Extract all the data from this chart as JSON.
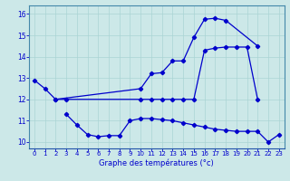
{
  "title": "Graphe des températures (°c)",
  "bg_color": "#cce8e8",
  "grid_color": "#aad4d4",
  "line_color": "#0000cc",
  "series": [
    {
      "x": [
        0,
        1,
        2,
        10,
        11,
        12,
        13,
        14,
        15,
        16,
        17,
        18,
        21
      ],
      "y": [
        12.9,
        12.5,
        12.0,
        12.5,
        13.2,
        13.25,
        13.8,
        13.8,
        14.9,
        15.75,
        15.8,
        15.7,
        14.5
      ]
    },
    {
      "x": [
        2,
        3,
        10,
        11,
        12,
        13,
        14,
        15,
        16,
        17,
        18,
        19,
        20,
        21
      ],
      "y": [
        12.0,
        12.0,
        12.0,
        12.0,
        12.0,
        12.0,
        12.0,
        12.0,
        14.3,
        14.4,
        14.45,
        14.45,
        14.45,
        12.0
      ]
    },
    {
      "x": [
        3,
        4,
        5,
        6,
        7,
        8,
        9,
        10,
        11,
        12,
        13,
        14,
        15,
        16,
        17,
        18,
        19,
        20,
        21,
        22,
        23
      ],
      "y": [
        11.3,
        10.8,
        10.35,
        10.25,
        10.3,
        10.3,
        11.0,
        11.1,
        11.1,
        11.05,
        11.0,
        10.9,
        10.8,
        10.7,
        10.6,
        10.55,
        10.5,
        10.5,
        10.5,
        10.0,
        10.35
      ]
    }
  ],
  "ylim": [
    9.7,
    16.4
  ],
  "yticks": [
    10,
    11,
    12,
    13,
    14,
    15,
    16
  ],
  "xticks": [
    0,
    1,
    2,
    3,
    4,
    5,
    6,
    7,
    8,
    9,
    10,
    11,
    12,
    13,
    14,
    15,
    16,
    17,
    18,
    19,
    20,
    21,
    22,
    23
  ],
  "xlim": [
    -0.5,
    23.5
  ]
}
